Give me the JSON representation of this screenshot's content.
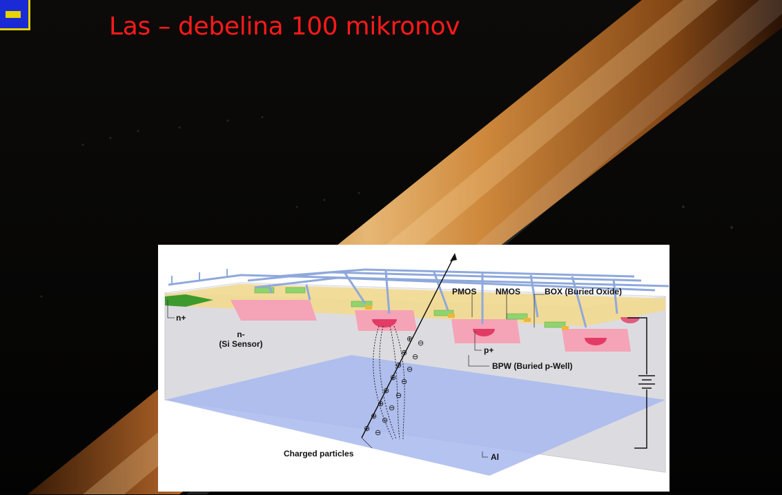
{
  "slide": {
    "title": "Las – debelina 100 mikronov"
  },
  "diagram": {
    "labels": {
      "n_plus": "n+",
      "n_minus": "n-",
      "si_sensor": "(Si Sensor)",
      "pmos": "PMOS",
      "nmos": "NMOS",
      "box": "BOX (Buried Oxide)",
      "p_plus": "p+",
      "bpw": "BPW (Buried p-Well)",
      "al": "Al",
      "charged_particles": "Charged particles"
    }
  },
  "colors": {
    "title": "#ff1a1a",
    "hair": "#d99a4a",
    "substrate": "#d9d9de",
    "al_layer": "#9fb3ef",
    "oxide": "#f3d98a",
    "well": "#f5a9b8",
    "wiring": "#8ea8dc"
  }
}
